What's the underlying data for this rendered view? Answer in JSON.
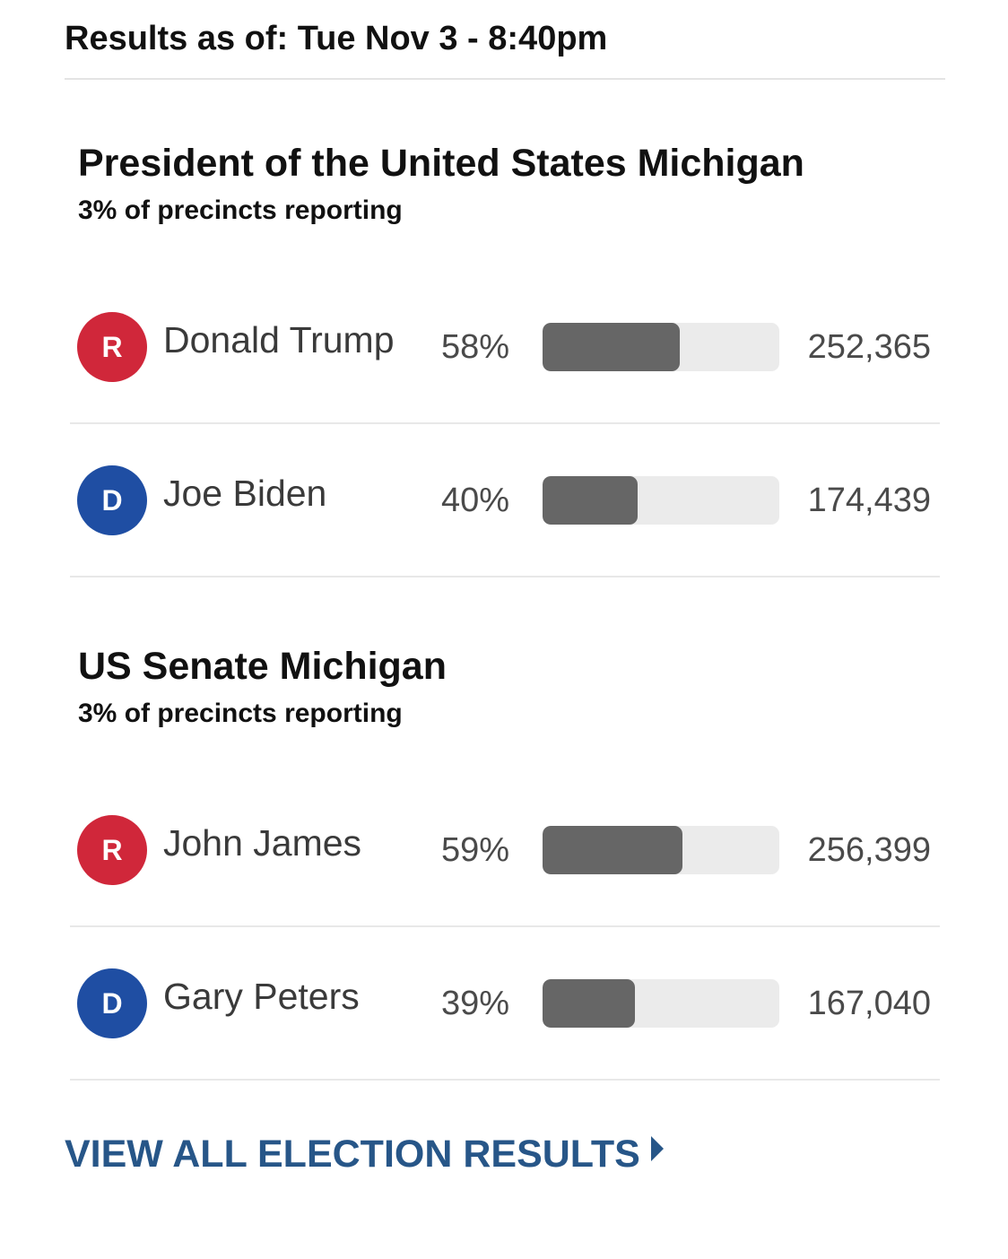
{
  "header": {
    "results_as_of": "Results as of: Tue Nov 3 - 8:40pm"
  },
  "races": [
    {
      "title": "President of the United States Michigan",
      "reporting": "3% of precincts reporting",
      "candidates": [
        {
          "party": "R",
          "party_color": "#d0273a",
          "name": "Donald Trump",
          "percent_label": "58%",
          "percent": 58,
          "votes": "252,365"
        },
        {
          "party": "D",
          "party_color": "#1f4ea3",
          "name": "Joe Biden",
          "percent_label": "40%",
          "percent": 40,
          "votes": "174,439"
        }
      ]
    },
    {
      "title": "US Senate Michigan",
      "reporting": "3% of precincts reporting",
      "candidates": [
        {
          "party": "R",
          "party_color": "#d0273a",
          "name": "John James",
          "percent_label": "59%",
          "percent": 59,
          "votes": "256,399"
        },
        {
          "party": "D",
          "party_color": "#1f4ea3",
          "name": "Gary Peters",
          "percent_label": "39%",
          "percent": 39,
          "votes": "167,040"
        }
      ]
    }
  ],
  "footer": {
    "view_all_label": "VIEW ALL ELECTION RESULTS",
    "link_color": "#275688"
  },
  "icons": {
    "view_all_arrow": "caret-right-icon"
  }
}
